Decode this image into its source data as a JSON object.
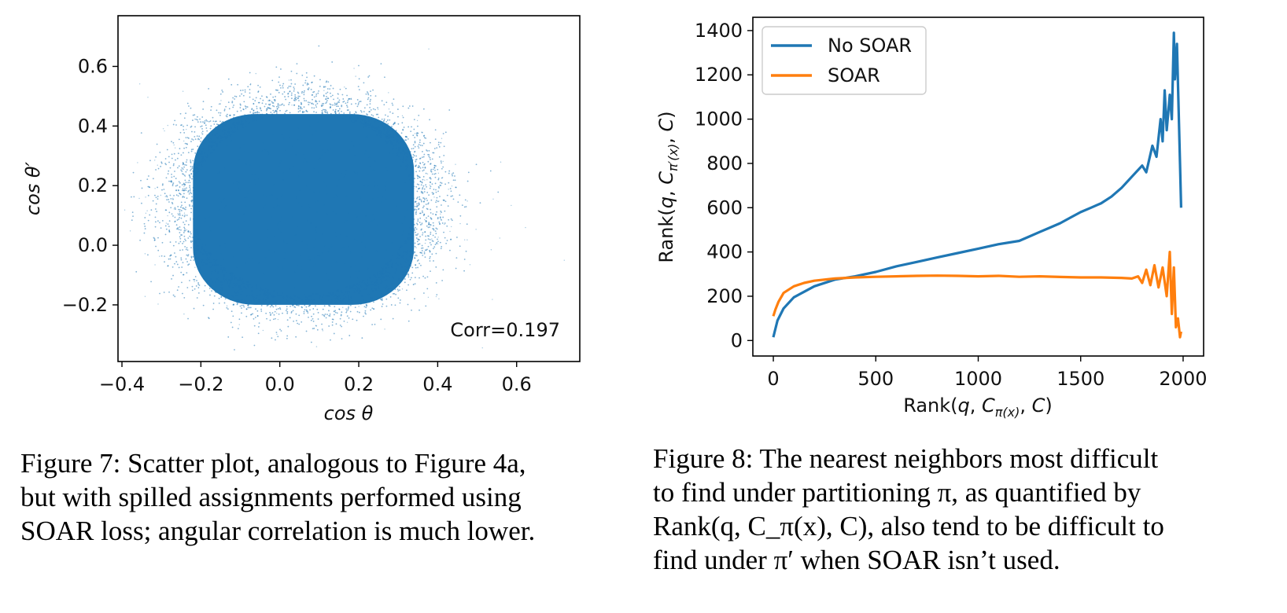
{
  "chart_data": [
    {
      "type": "scatter",
      "title": "",
      "xlabel": "cos θ",
      "ylabel": "cos θ′",
      "xlim": [
        -0.41,
        0.76
      ],
      "ylim": [
        -0.39,
        0.77
      ],
      "xticks": [
        -0.4,
        -0.2,
        0.0,
        0.2,
        0.4,
        0.6
      ],
      "xtick_labels": [
        "−0.4",
        "−0.2",
        "0.0",
        "0.2",
        "0.4",
        "0.6"
      ],
      "yticks": [
        -0.2,
        0.0,
        0.2,
        0.4,
        0.6
      ],
      "ytick_labels": [
        "−0.2",
        "0.0",
        "0.2",
        "0.4",
        "0.6"
      ],
      "color": "#1f77b4",
      "annotation": "Corr=0.197",
      "density": {
        "core_x_range": [
          -0.22,
          0.34
        ],
        "core_y_range": [
          -0.2,
          0.44
        ],
        "mean": [
          0.06,
          0.14
        ],
        "correlation": 0.197
      },
      "grid": false
    },
    {
      "type": "line",
      "title": "",
      "xlabel": "Rank(q, C_π(x), C)",
      "ylabel": "Rank(q, C_π′(x), C)",
      "xlim": [
        -100,
        2100
      ],
      "ylim": [
        -70,
        1460
      ],
      "xticks": [
        0,
        500,
        1000,
        1500,
        2000
      ],
      "xtick_labels": [
        "0",
        "500",
        "1000",
        "1500",
        "2000"
      ],
      "yticks": [
        0,
        200,
        400,
        600,
        800,
        1000,
        1200,
        1400
      ],
      "ytick_labels": [
        "0",
        "200",
        "400",
        "600",
        "800",
        "1000",
        "1200",
        "1400"
      ],
      "legend_position": "top-left",
      "grid": false,
      "series": [
        {
          "name": "No SOAR",
          "color": "#1f77b4",
          "x": [
            0,
            20,
            50,
            100,
            150,
            200,
            300,
            400,
            500,
            600,
            700,
            800,
            900,
            1000,
            1100,
            1200,
            1250,
            1300,
            1350,
            1400,
            1450,
            1500,
            1550,
            1600,
            1650,
            1700,
            1750,
            1800,
            1820,
            1850,
            1870,
            1890,
            1900,
            1910,
            1920,
            1935,
            1945,
            1955,
            1960,
            1970,
            1978,
            1985,
            1990
          ],
          "y": [
            15,
            90,
            145,
            195,
            220,
            245,
            275,
            290,
            310,
            335,
            355,
            375,
            395,
            415,
            435,
            450,
            470,
            490,
            510,
            530,
            555,
            580,
            600,
            620,
            650,
            690,
            740,
            790,
            760,
            880,
            830,
            1000,
            900,
            1130,
            950,
            1110,
            1000,
            1390,
            1180,
            1340,
            1050,
            800,
            600
          ]
        },
        {
          "name": "SOAR",
          "color": "#ff7f0e",
          "x": [
            0,
            10,
            25,
            50,
            100,
            150,
            200,
            300,
            400,
            500,
            600,
            700,
            800,
            900,
            1000,
            1100,
            1200,
            1300,
            1400,
            1500,
            1600,
            1700,
            1750,
            1780,
            1800,
            1820,
            1840,
            1860,
            1880,
            1900,
            1920,
            1935,
            1945,
            1955,
            1965,
            1975,
            1985,
            1990
          ],
          "y": [
            110,
            140,
            175,
            215,
            245,
            260,
            270,
            280,
            285,
            288,
            290,
            292,
            293,
            292,
            290,
            292,
            288,
            290,
            287,
            285,
            285,
            283,
            280,
            290,
            260,
            320,
            250,
            340,
            240,
            330,
            200,
            400,
            120,
            330,
            60,
            100,
            15,
            40
          ]
        }
      ]
    }
  ],
  "captions": {
    "fig7_lines": [
      "Figure 7: Scatter plot, analogous to Figure 4a,",
      "but with spilled assignments performed using",
      "SOAR loss; angular correlation is much lower."
    ],
    "fig8_lines": [
      "Figure 8: The nearest neighbors most difficult",
      "to find under partitioning π, as quantified by",
      "Rank(q, C_π(x), C), also tend to be difficult to",
      "find under π′ when SOAR isn’t used."
    ]
  }
}
